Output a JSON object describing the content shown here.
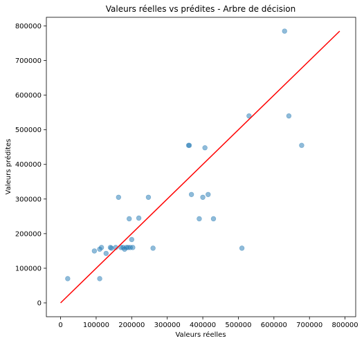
{
  "chart_data": {
    "type": "scatter",
    "title": "Valeurs réelles vs prédites - Arbre de décision",
    "xlabel": "Valeurs réelles",
    "ylabel": "Valeurs prédites",
    "xlim": [
      -40000,
      830000
    ],
    "ylim": [
      -40000,
      825000
    ],
    "xticks": [
      0,
      100000,
      200000,
      300000,
      400000,
      500000,
      600000,
      700000,
      800000
    ],
    "yticks": [
      0,
      100000,
      200000,
      300000,
      400000,
      500000,
      600000,
      700000,
      800000
    ],
    "grid": false,
    "point_color": "#1f77b4",
    "point_alpha": 0.5,
    "line_color": "#ff0000",
    "reference_line": {
      "x": [
        0,
        785000
      ],
      "y": [
        0,
        785000
      ]
    },
    "points": [
      {
        "x": 20000,
        "y": 70000
      },
      {
        "x": 95000,
        "y": 150000
      },
      {
        "x": 110000,
        "y": 155000
      },
      {
        "x": 110000,
        "y": 70000
      },
      {
        "x": 115000,
        "y": 160000
      },
      {
        "x": 128000,
        "y": 143000
      },
      {
        "x": 140000,
        "y": 160000
      },
      {
        "x": 143000,
        "y": 158000
      },
      {
        "x": 155000,
        "y": 160000
      },
      {
        "x": 163000,
        "y": 305000
      },
      {
        "x": 170000,
        "y": 160000
      },
      {
        "x": 176000,
        "y": 160000
      },
      {
        "x": 180000,
        "y": 155000
      },
      {
        "x": 185000,
        "y": 160000
      },
      {
        "x": 190000,
        "y": 160000
      },
      {
        "x": 193000,
        "y": 243000
      },
      {
        "x": 196000,
        "y": 160000
      },
      {
        "x": 200000,
        "y": 183000
      },
      {
        "x": 203000,
        "y": 160000
      },
      {
        "x": 220000,
        "y": 245000
      },
      {
        "x": 247000,
        "y": 305000
      },
      {
        "x": 260000,
        "y": 158000
      },
      {
        "x": 360000,
        "y": 455000
      },
      {
        "x": 362000,
        "y": 455000
      },
      {
        "x": 368000,
        "y": 313000
      },
      {
        "x": 390000,
        "y": 243000
      },
      {
        "x": 400000,
        "y": 305000
      },
      {
        "x": 406000,
        "y": 448000
      },
      {
        "x": 415000,
        "y": 313000
      },
      {
        "x": 430000,
        "y": 243000
      },
      {
        "x": 510000,
        "y": 158000
      },
      {
        "x": 530000,
        "y": 540000
      },
      {
        "x": 630000,
        "y": 785000
      },
      {
        "x": 642000,
        "y": 540000
      },
      {
        "x": 678000,
        "y": 455000
      }
    ]
  }
}
